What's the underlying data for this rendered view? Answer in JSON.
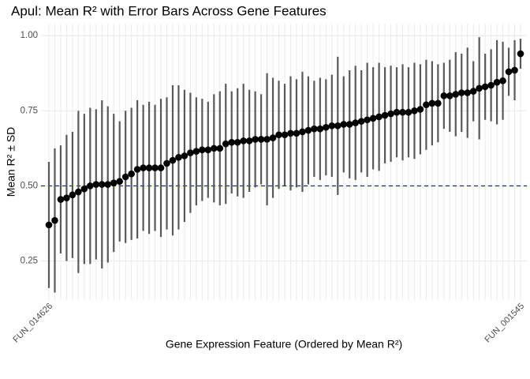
{
  "chart_data": {
    "type": "errorbar",
    "title": "Apul: Mean R² with Error Bars Across Gene Features",
    "x_label": "Gene Expression Feature (Ordered by Mean R²)",
    "y_label": "Mean R² ± SD",
    "categories": [
      "FUN_014626",
      null,
      null,
      null,
      null,
      null,
      null,
      null,
      null,
      null,
      null,
      null,
      null,
      null,
      null,
      null,
      null,
      null,
      null,
      null,
      null,
      null,
      null,
      null,
      null,
      null,
      null,
      null,
      null,
      null,
      null,
      null,
      null,
      null,
      null,
      null,
      null,
      null,
      null,
      null,
      null,
      null,
      null,
      null,
      null,
      null,
      null,
      null,
      null,
      null,
      null,
      null,
      null,
      null,
      null,
      null,
      null,
      null,
      null,
      null,
      null,
      null,
      null,
      null,
      null,
      null,
      null,
      null,
      null,
      null,
      null,
      null,
      null,
      null,
      null,
      null,
      null,
      null,
      null,
      null,
      "FUN_001545"
    ],
    "values": [
      0.37,
      0.385,
      0.455,
      0.46,
      0.47,
      0.48,
      0.49,
      0.5,
      0.505,
      0.505,
      0.505,
      0.51,
      0.515,
      0.53,
      0.54,
      0.555,
      0.56,
      0.56,
      0.56,
      0.56,
      0.575,
      0.585,
      0.595,
      0.6,
      0.61,
      0.615,
      0.62,
      0.62,
      0.625,
      0.625,
      0.64,
      0.645,
      0.645,
      0.65,
      0.65,
      0.655,
      0.655,
      0.655,
      0.66,
      0.67,
      0.67,
      0.675,
      0.675,
      0.68,
      0.685,
      0.69,
      0.69,
      0.695,
      0.7,
      0.7,
      0.705,
      0.705,
      0.71,
      0.715,
      0.72,
      0.725,
      0.73,
      0.735,
      0.74,
      0.745,
      0.745,
      0.745,
      0.75,
      0.755,
      0.77,
      0.775,
      0.775,
      0.8,
      0.8,
      0.805,
      0.81,
      0.81,
      0.815,
      0.825,
      0.83,
      0.835,
      0.845,
      0.85,
      0.88,
      0.885,
      0.94
    ],
    "errors": [
      0.21,
      0.24,
      0.18,
      0.21,
      0.21,
      0.27,
      0.25,
      0.26,
      0.25,
      0.28,
      0.26,
      0.23,
      0.2,
      0.22,
      0.22,
      0.23,
      0.21,
      0.22,
      0.21,
      0.23,
      0.22,
      0.25,
      0.24,
      0.22,
      0.2,
      0.18,
      0.17,
      0.16,
      0.18,
      0.19,
      0.2,
      0.17,
      0.18,
      0.19,
      0.17,
      0.16,
      0.15,
      0.22,
      0.2,
      0.18,
      0.17,
      0.19,
      0.18,
      0.2,
      0.18,
      0.16,
      0.17,
      0.16,
      0.17,
      0.23,
      0.16,
      0.18,
      0.19,
      0.17,
      0.19,
      0.17,
      0.18,
      0.16,
      0.16,
      0.15,
      0.16,
      0.15,
      0.16,
      0.15,
      0.15,
      0.14,
      0.13,
      0.11,
      0.12,
      0.14,
      0.13,
      0.15,
      0.1,
      0.17,
      0.11,
      0.12,
      0.14,
      0.13,
      0.08,
      0.1,
      0.05
    ],
    "color": "#000000",
    "error_color": "#595959",
    "ylim": [
      0.12,
      1.04
    ],
    "yticks": [
      0.25,
      {
        "value": 0.5,
        "label": "0.50"
      },
      0.75,
      {
        "value": 1,
        "label": "1.00"
      }
    ],
    "hline": {
      "value": 0.5,
      "color": "#0000ff"
    },
    "grid": true
  }
}
